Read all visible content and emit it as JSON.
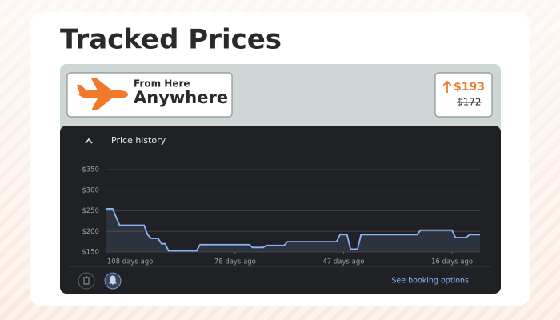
{
  "header": {
    "title": "Tracked Prices"
  },
  "trip": {
    "line1": "From Here",
    "line2": "Anywhere"
  },
  "price": {
    "current": "$193",
    "previous": "$172"
  },
  "panel": {
    "title": "Price history",
    "action": "See booking options"
  },
  "chart_data": {
    "type": "line",
    "x": [
      -115,
      -113,
      -111,
      -104,
      -103,
      -102,
      -100,
      -99,
      -98,
      -97,
      -89,
      -88,
      -74,
      -73,
      -70,
      -69,
      -64,
      -63,
      -49,
      -48,
      -46,
      -45,
      -43,
      -42,
      -26,
      -25,
      -16,
      -15,
      -12,
      -11,
      -8
    ],
    "series": [
      {
        "color": "#8ab4f8",
        "values": [
          255,
          255,
          215,
          215,
          192,
          183,
          183,
          170,
          170,
          153,
          153,
          168,
          168,
          161,
          161,
          166,
          166,
          175,
          175,
          192,
          192,
          157,
          157,
          192,
          192,
          203,
          203,
          185,
          185,
          192,
          192
        ]
      }
    ],
    "xlim": [
      -115,
      -8
    ],
    "xticks": [
      {
        "value": -108,
        "label": "108 days ago"
      },
      {
        "value": -78,
        "label": "78 days ago"
      },
      {
        "value": -47,
        "label": "47 days ago"
      },
      {
        "value": -16,
        "label": "16 days ago"
      }
    ],
    "ylim": [
      150,
      350
    ],
    "yticks": [
      {
        "value": 150,
        "label": "$150"
      },
      {
        "value": 200,
        "label": "$200"
      },
      {
        "value": 250,
        "label": "$250"
      },
      {
        "value": 300,
        "label": "$300"
      },
      {
        "value": 350,
        "label": "$350"
      }
    ],
    "grid": true
  }
}
